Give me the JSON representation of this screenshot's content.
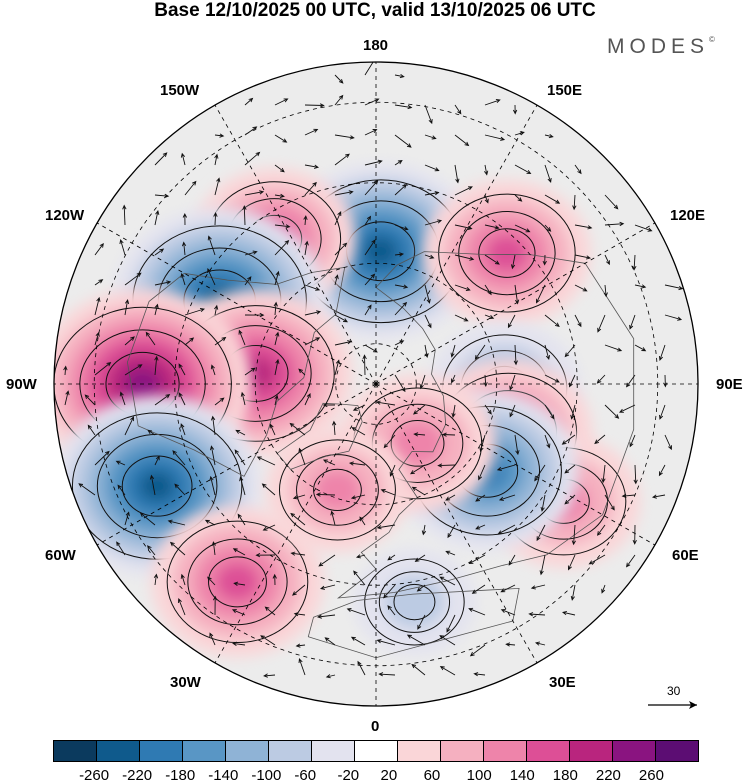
{
  "title": "Base 12/10/2025 00 UTC, valid 13/10/2025 06 UTC",
  "brand": "MODES",
  "brand_mark": "©",
  "lon_labels": {
    "top": "180",
    "bottom": "0",
    "left": "90W",
    "right": "90E",
    "w150": "150W",
    "e150": "150E",
    "w120": "120W",
    "e120": "120E",
    "w60": "60W",
    "e60": "60E",
    "w30": "30W",
    "e30": "30E"
  },
  "reference_vector": {
    "value": "30",
    "icon": "arrow-right-icon"
  },
  "colorbar": {
    "ticks": [
      "-260",
      "-220",
      "-180",
      "-140",
      "-100",
      "-60",
      "-20",
      "20",
      "60",
      "100",
      "140",
      "180",
      "220",
      "260"
    ],
    "colors": [
      "#0b3a5e",
      "#0f5a8c",
      "#2f7ab3",
      "#5996c5",
      "#8fb3d6",
      "#bccbe3",
      "#e3e3ef",
      "#ffffff",
      "#fad6d8",
      "#f5b0c0",
      "#ee84aa",
      "#dd4f96",
      "#b9257e",
      "#8a1480",
      "#5c0d73"
    ]
  },
  "anomalies": [
    {
      "name": "anomaly-center-bering",
      "value": -220,
      "lon": 178,
      "lat": 57
    },
    {
      "name": "anomaly-ring-alaska",
      "value": 140,
      "lon": -145,
      "lat": 46
    },
    {
      "name": "anomaly-trough-yukon",
      "value": -240,
      "lon": -118,
      "lat": 46
    },
    {
      "name": "anomaly-ridge-hudson",
      "value": 200,
      "lon": -95,
      "lat": 60
    },
    {
      "name": "anomaly-ridge-great-lakes",
      "value": 250,
      "lon": -90,
      "lat": 32
    },
    {
      "name": "anomaly-trough-atlantic-west",
      "value": -230,
      "lon": -65,
      "lat": 30
    },
    {
      "name": "anomaly-ridge-azores",
      "value": 160,
      "lon": -35,
      "lat": 30
    },
    {
      "name": "anomaly-trough-europe",
      "value": -60,
      "lon": 10,
      "lat": 35
    },
    {
      "name": "anomaly-ridge-siberia-east",
      "value": 150,
      "lon": 135,
      "lat": 44
    },
    {
      "name": "anomaly-trough-siberia",
      "value": -120,
      "lon": 88,
      "lat": 58
    },
    {
      "name": "anomaly-ridge-central-asia",
      "value": 150,
      "lon": 70,
      "lat": 55
    },
    {
      "name": "anomaly-ridge-kazakh",
      "value": 120,
      "lon": 58,
      "lat": 35
    },
    {
      "name": "anomaly-trough-urals",
      "value": -180,
      "lon": 52,
      "lat": 55
    },
    {
      "name": "anomaly-ridge-scandinavia",
      "value": 130,
      "lon": 35,
      "lat": 72
    },
    {
      "name": "anomaly-ridge-greenland",
      "value": 100,
      "lon": -20,
      "lat": 62
    }
  ]
}
